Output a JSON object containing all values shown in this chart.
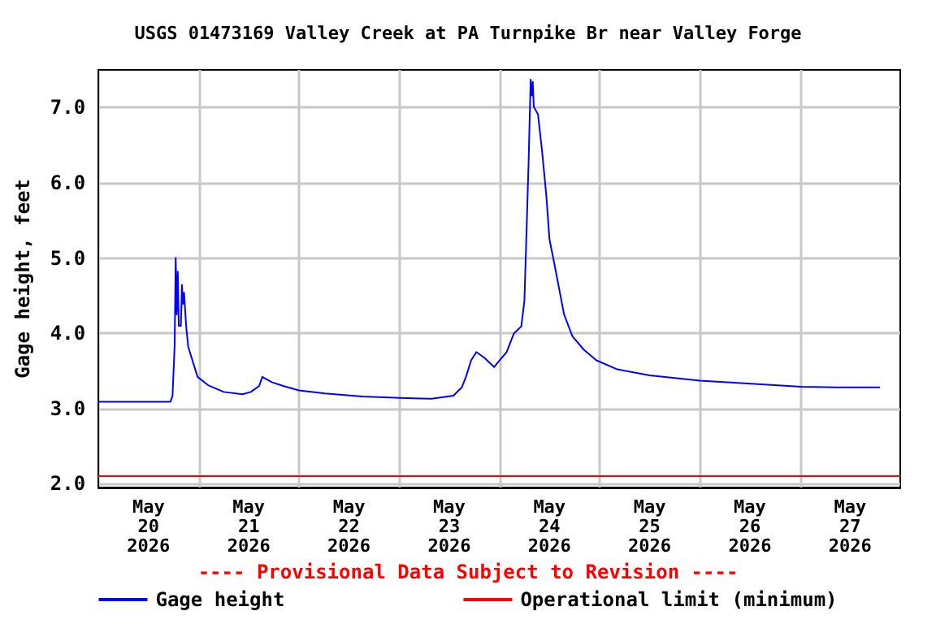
{
  "chart_data": {
    "type": "line",
    "title": "USGS 01473169 Valley Creek at PA Turnpike Br near Valley Forge",
    "ylabel": "Gage height, feet",
    "annotations": [
      "---- Provisional Data Subject to Revision ----"
    ],
    "x": [
      "2026-05-20T00:00",
      "2026-05-20T17:15",
      "2026-05-20T17:45",
      "2026-05-20T18:15",
      "2026-05-20T18:30",
      "2026-05-20T18:45",
      "2026-05-20T19:00",
      "2026-05-20T19:15",
      "2026-05-20T19:45",
      "2026-05-20T20:00",
      "2026-05-20T20:15",
      "2026-05-20T20:30",
      "2026-05-20T21:00",
      "2026-05-20T21:30",
      "2026-05-20T22:30",
      "2026-05-20T23:45",
      "2026-05-21T02:15",
      "2026-05-21T06:00",
      "2026-05-21T10:30",
      "2026-05-21T12:30",
      "2026-05-21T14:30",
      "2026-05-21T15:15",
      "2026-05-21T17:30",
      "2026-05-21T20:15",
      "2026-05-22T00:00",
      "2026-05-22T06:15",
      "2026-05-22T15:15",
      "2026-05-23T00:15",
      "2026-05-23T07:45",
      "2026-05-23T13:00",
      "2026-05-23T15:00",
      "2026-05-23T16:00",
      "2026-05-23T17:15",
      "2026-05-23T18:30",
      "2026-05-23T20:30",
      "2026-05-23T22:45",
      "2026-05-23T23:45",
      "2026-05-24T01:45",
      "2026-05-24T03:30",
      "2026-05-24T05:15",
      "2026-05-24T06:00",
      "2026-05-24T06:30",
      "2026-05-24T07:00",
      "2026-05-24T07:30",
      "2026-05-24T07:45",
      "2026-05-24T08:00",
      "2026-05-24T08:15",
      "2026-05-24T09:15",
      "2026-05-24T10:15",
      "2026-05-24T11:15",
      "2026-05-24T12:00",
      "2026-05-24T13:15",
      "2026-05-24T14:30",
      "2026-05-24T15:30",
      "2026-05-24T17:30",
      "2026-05-24T20:15",
      "2026-05-24T23:15",
      "2026-05-25T04:15",
      "2026-05-25T12:00",
      "2026-05-26T00:00",
      "2026-05-26T12:15",
      "2026-05-27T00:15",
      "2026-05-27T08:45",
      "2026-05-27T19:00"
    ],
    "series": [
      {
        "name": "Gage height",
        "color": "#0000ff",
        "values": [
          3.09,
          3.09,
          3.17,
          3.84,
          5.0,
          4.25,
          4.82,
          4.1,
          4.1,
          4.64,
          4.39,
          4.54,
          4.1,
          3.82,
          3.64,
          3.42,
          3.31,
          3.22,
          3.19,
          3.22,
          3.3,
          3.42,
          3.35,
          3.3,
          3.24,
          3.2,
          3.16,
          3.14,
          3.13,
          3.17,
          3.28,
          3.42,
          3.64,
          3.75,
          3.67,
          3.55,
          3.62,
          3.75,
          4.0,
          4.09,
          4.43,
          5.33,
          6.26,
          7.37,
          7.16,
          7.34,
          7.01,
          6.91,
          6.41,
          5.83,
          5.25,
          4.9,
          4.54,
          4.25,
          3.96,
          3.78,
          3.64,
          3.52,
          3.44,
          3.37,
          3.33,
          3.29,
          3.28,
          3.28
        ]
      },
      {
        "name": "Operational limit (minimum)",
        "color": "#ff0000",
        "x": [
          "2026-05-20T00:00",
          "2026-05-28T00:00"
        ],
        "values": [
          2.1,
          2.1
        ]
      }
    ],
    "xlim": [
      "2026-05-20T00:00",
      "2026-05-28T00:00"
    ],
    "xticks": [
      {
        "value": "2026-05-20T12:00",
        "label": "May\n20\n2026"
      },
      {
        "value": "2026-05-21T12:00",
        "label": "May\n21\n2026"
      },
      {
        "value": "2026-05-22T12:00",
        "label": "May\n22\n2026"
      },
      {
        "value": "2026-05-23T12:00",
        "label": "May\n23\n2026"
      },
      {
        "value": "2026-05-24T12:00",
        "label": "May\n24\n2026"
      },
      {
        "value": "2026-05-25T12:00",
        "label": "May\n25\n2026"
      },
      {
        "value": "2026-05-26T12:00",
        "label": "May\n26\n2026"
      },
      {
        "value": "2026-05-27T12:00",
        "label": "May\n27\n2026"
      },
      {
        "value": "2026-05-21T00:00",
        "label": null
      },
      {
        "value": "2026-05-22T00:00",
        "label": null
      },
      {
        "value": "2026-05-23T00:00",
        "label": null
      },
      {
        "value": "2026-05-24T00:00",
        "label": null
      },
      {
        "value": "2026-05-25T00:00",
        "label": null
      },
      {
        "value": "2026-05-26T00:00",
        "label": null
      },
      {
        "value": "2026-05-27T00:00",
        "label": null
      }
    ],
    "ylim": [
      1.95,
      7.5
    ],
    "yticks": [
      {
        "value": 2,
        "label": "2.0"
      },
      {
        "value": 3,
        "label": "3.0"
      },
      {
        "value": 4,
        "label": "4.0"
      },
      {
        "value": 5,
        "label": "5.0"
      },
      {
        "value": 6,
        "label": "6.0"
      },
      {
        "value": 7,
        "label": "7.0"
      }
    ],
    "grid": true,
    "legend": "bottom",
    "marker": "none",
    "line_style": "solid"
  }
}
